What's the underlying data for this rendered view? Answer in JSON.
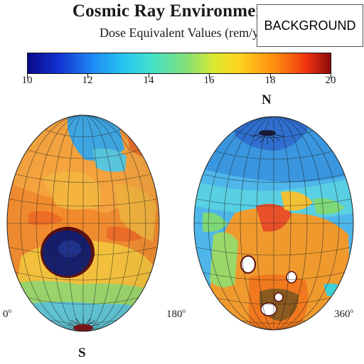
{
  "title": "Cosmic Ray Environment",
  "subtitle": "Dose Equivalent Values (rem/y",
  "background_button": "BACKGROUND",
  "colorbar": {
    "ticks": [
      "10",
      "12",
      "14",
      "16",
      "18",
      "20"
    ],
    "min": 10,
    "max": 20
  },
  "globe_labels": {
    "north": "N",
    "south": "S",
    "lon_0": "0",
    "lon_180": "180",
    "lon_360": "360",
    "degree_sign": "o"
  }
}
